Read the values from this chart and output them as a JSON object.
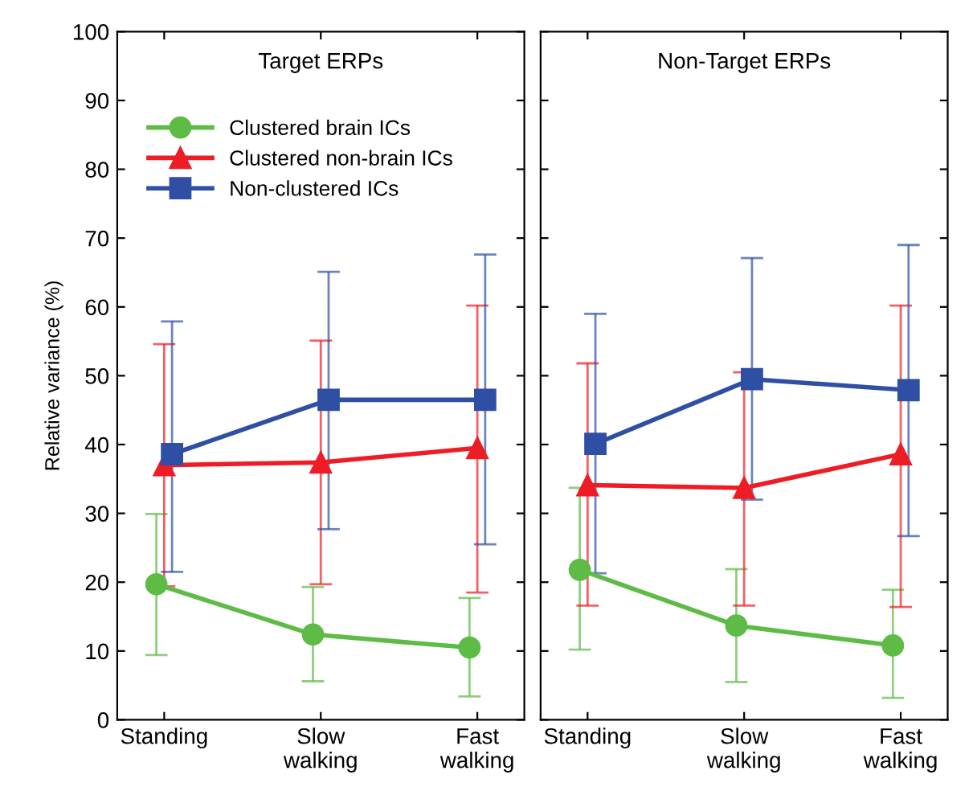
{
  "chart_data": [
    {
      "type": "line",
      "title": "Target ERPs",
      "ylabel": "Relative variance (%)",
      "categories": [
        "Standing",
        "Slow\nwalking",
        "Fast\nwalking"
      ],
      "ylim": [
        0,
        100
      ],
      "yticks": [
        0,
        10,
        20,
        30,
        40,
        50,
        60,
        70,
        80,
        90,
        100
      ],
      "legend": "top left",
      "grid": false,
      "series": [
        {
          "name": "Clustered brain ICs",
          "color": "#5dbb46",
          "marker": "circle",
          "values": [
            19.7,
            12.4,
            10.5
          ],
          "errors": [
            [
              9.4,
              29.9
            ],
            [
              5.6,
              19.3
            ],
            [
              3.4,
              17.7
            ]
          ]
        },
        {
          "name": "Clustered non-brain ICs",
          "color": "#ee1c25",
          "marker": "triangle",
          "values": [
            37.0,
            37.4,
            39.5
          ],
          "errors": [
            [
              19.4,
              54.6
            ],
            [
              19.7,
              55.1
            ],
            [
              18.5,
              60.2
            ]
          ]
        },
        {
          "name": "Non-clustered ICs",
          "color": "#2e4fa3",
          "marker": "square",
          "values": [
            38.6,
            46.5,
            46.5
          ],
          "errors": [
            [
              21.5,
              57.9
            ],
            [
              27.7,
              65.1
            ],
            [
              25.5,
              67.6
            ]
          ]
        }
      ]
    },
    {
      "type": "line",
      "title": "Non-Target ERPs",
      "categories": [
        "Standing",
        "Slow\nwalking",
        "Fast\nwalking"
      ],
      "ylim": [
        0,
        100
      ],
      "yticks": [
        0,
        10,
        20,
        30,
        40,
        50,
        60,
        70,
        80,
        90,
        100
      ],
      "tick_labels": "x",
      "grid": false,
      "series": [
        {
          "color": "#5dbb46",
          "marker": "circle",
          "values": [
            21.8,
            13.7,
            10.8
          ],
          "errors": [
            [
              10.2,
              33.7
            ],
            [
              5.5,
              21.9
            ],
            [
              3.2,
              18.9
            ]
          ]
        },
        {
          "color": "#ee1c25",
          "marker": "triangle",
          "values": [
            34.1,
            33.7,
            38.6
          ],
          "errors": [
            [
              16.6,
              51.8
            ],
            [
              16.6,
              50.5
            ],
            [
              16.4,
              60.2
            ]
          ]
        },
        {
          "color": "#2e4fa3",
          "marker": "square",
          "values": [
            40.1,
            49.5,
            47.9
          ],
          "errors": [
            [
              21.3,
              59.0
            ],
            [
              32.0,
              67.1
            ],
            [
              26.7,
              69.0
            ]
          ]
        }
      ]
    }
  ]
}
